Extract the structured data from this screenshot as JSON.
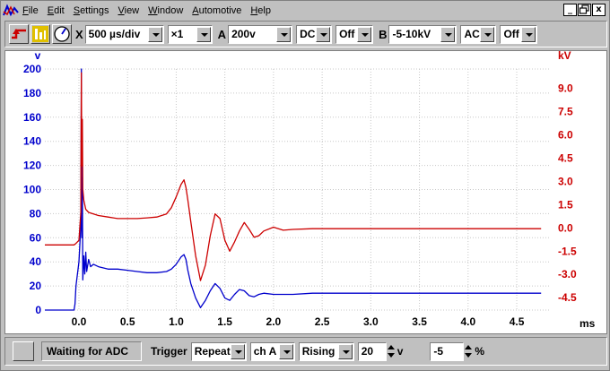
{
  "menu": {
    "items": [
      "File",
      "Edit",
      "Settings",
      "View",
      "Window",
      "Automotive",
      "Help"
    ],
    "window_buttons": [
      "_",
      "Ё",
      "x"
    ]
  },
  "toolbar": {
    "x_label": "X",
    "timebase": "500 µs/div",
    "multiplier": "×1",
    "a_label": "A",
    "a_range": "200v",
    "a_coupling": "DC",
    "a_offset": "Off",
    "b_label": "B",
    "b_range": "-5-10kV",
    "b_coupling": "AC",
    "b_offset": "Off"
  },
  "status": {
    "text": "Waiting for ADC",
    "trigger_label": "Trigger",
    "trigger_mode": "Repeat",
    "trigger_channel": "ch A",
    "trigger_edge": "Rising",
    "trigger_level": "20",
    "trigger_level_unit": "v",
    "pretrigger": "-5",
    "pretrigger_unit": "%"
  },
  "colors": {
    "channel_a": "#0000cc",
    "channel_b": "#cc0000",
    "grid": "#c8c8c8"
  },
  "chart_data": {
    "type": "line",
    "xlabel": "ms",
    "x_ticks": [
      "0.0",
      "0.5",
      "1.0",
      "1.5",
      "2.0",
      "2.5",
      "3.0",
      "3.5",
      "4.0",
      "4.5"
    ],
    "xlim": [
      -0.35,
      4.85
    ],
    "left_axis": {
      "unit": "v",
      "ticks": [
        "200",
        "180",
        "160",
        "140",
        "120",
        "100",
        "80",
        "60",
        "40",
        "20",
        "0"
      ],
      "ylim": [
        0,
        200
      ]
    },
    "right_axis": {
      "unit": "kV",
      "ticks": [
        "9.0",
        "7.5",
        "6.0",
        "4.5",
        "3.0",
        "1.5",
        "0.0",
        "-1.5",
        "-3.0",
        "-4.5"
      ],
      "ylim": [
        -5.3,
        10.25
      ]
    },
    "grid": true,
    "series": [
      {
        "axis": "left",
        "x": [
          -0.35,
          -0.05,
          -0.04,
          -0.03,
          0.0,
          0.02,
          0.025,
          0.03,
          0.035,
          0.04,
          0.05,
          0.06,
          0.07,
          0.08,
          0.1,
          0.12,
          0.15,
          0.2,
          0.3,
          0.4,
          0.5,
          0.6,
          0.7,
          0.8,
          0.9,
          0.95,
          1.0,
          1.05,
          1.08,
          1.1,
          1.12,
          1.15,
          1.2,
          1.25,
          1.3,
          1.35,
          1.4,
          1.45,
          1.5,
          1.55,
          1.6,
          1.65,
          1.7,
          1.75,
          1.8,
          1.85,
          1.9,
          2.0,
          2.1,
          2.2,
          2.4,
          2.6,
          3.0,
          3.5,
          4.0,
          4.5,
          4.75
        ],
        "y": [
          0,
          0,
          5,
          20,
          40,
          70,
          200,
          60,
          110,
          25,
          45,
          30,
          48,
          32,
          42,
          36,
          38,
          36,
          34,
          34,
          33,
          32,
          31,
          31,
          32,
          34,
          38,
          44,
          46,
          42,
          33,
          22,
          10,
          2,
          8,
          16,
          22,
          18,
          10,
          8,
          13,
          17,
          16,
          12,
          11,
          13,
          14,
          13,
          13,
          13,
          14,
          14,
          14,
          14,
          14,
          14,
          14
        ]
      },
      {
        "axis": "right",
        "x": [
          -0.35,
          -0.05,
          -0.03,
          0.0,
          0.02,
          0.025,
          0.03,
          0.035,
          0.04,
          0.05,
          0.07,
          0.1,
          0.15,
          0.2,
          0.3,
          0.4,
          0.5,
          0.6,
          0.7,
          0.8,
          0.9,
          0.95,
          1.0,
          1.05,
          1.08,
          1.1,
          1.12,
          1.15,
          1.2,
          1.25,
          1.3,
          1.35,
          1.4,
          1.45,
          1.5,
          1.55,
          1.6,
          1.65,
          1.7,
          1.75,
          1.8,
          1.85,
          1.9,
          2.0,
          2.1,
          2.2,
          2.4,
          2.6,
          3.0,
          3.5,
          4.0,
          4.5,
          4.75
        ],
        "y": [
          -1.1,
          -1.1,
          -1.0,
          -0.8,
          1.0,
          10.0,
          4.0,
          7.0,
          2.5,
          1.8,
          1.2,
          1.0,
          0.9,
          0.8,
          0.7,
          0.6,
          0.6,
          0.6,
          0.65,
          0.7,
          0.9,
          1.3,
          2.0,
          2.8,
          3.1,
          2.6,
          1.8,
          0.4,
          -1.8,
          -3.4,
          -2.4,
          -0.5,
          0.9,
          0.6,
          -0.8,
          -1.5,
          -0.9,
          -0.2,
          0.35,
          -0.1,
          -0.6,
          -0.5,
          -0.2,
          0.05,
          -0.15,
          -0.1,
          -0.05,
          -0.05,
          -0.05,
          -0.05,
          -0.05,
          -0.05,
          -0.05
        ]
      }
    ]
  }
}
